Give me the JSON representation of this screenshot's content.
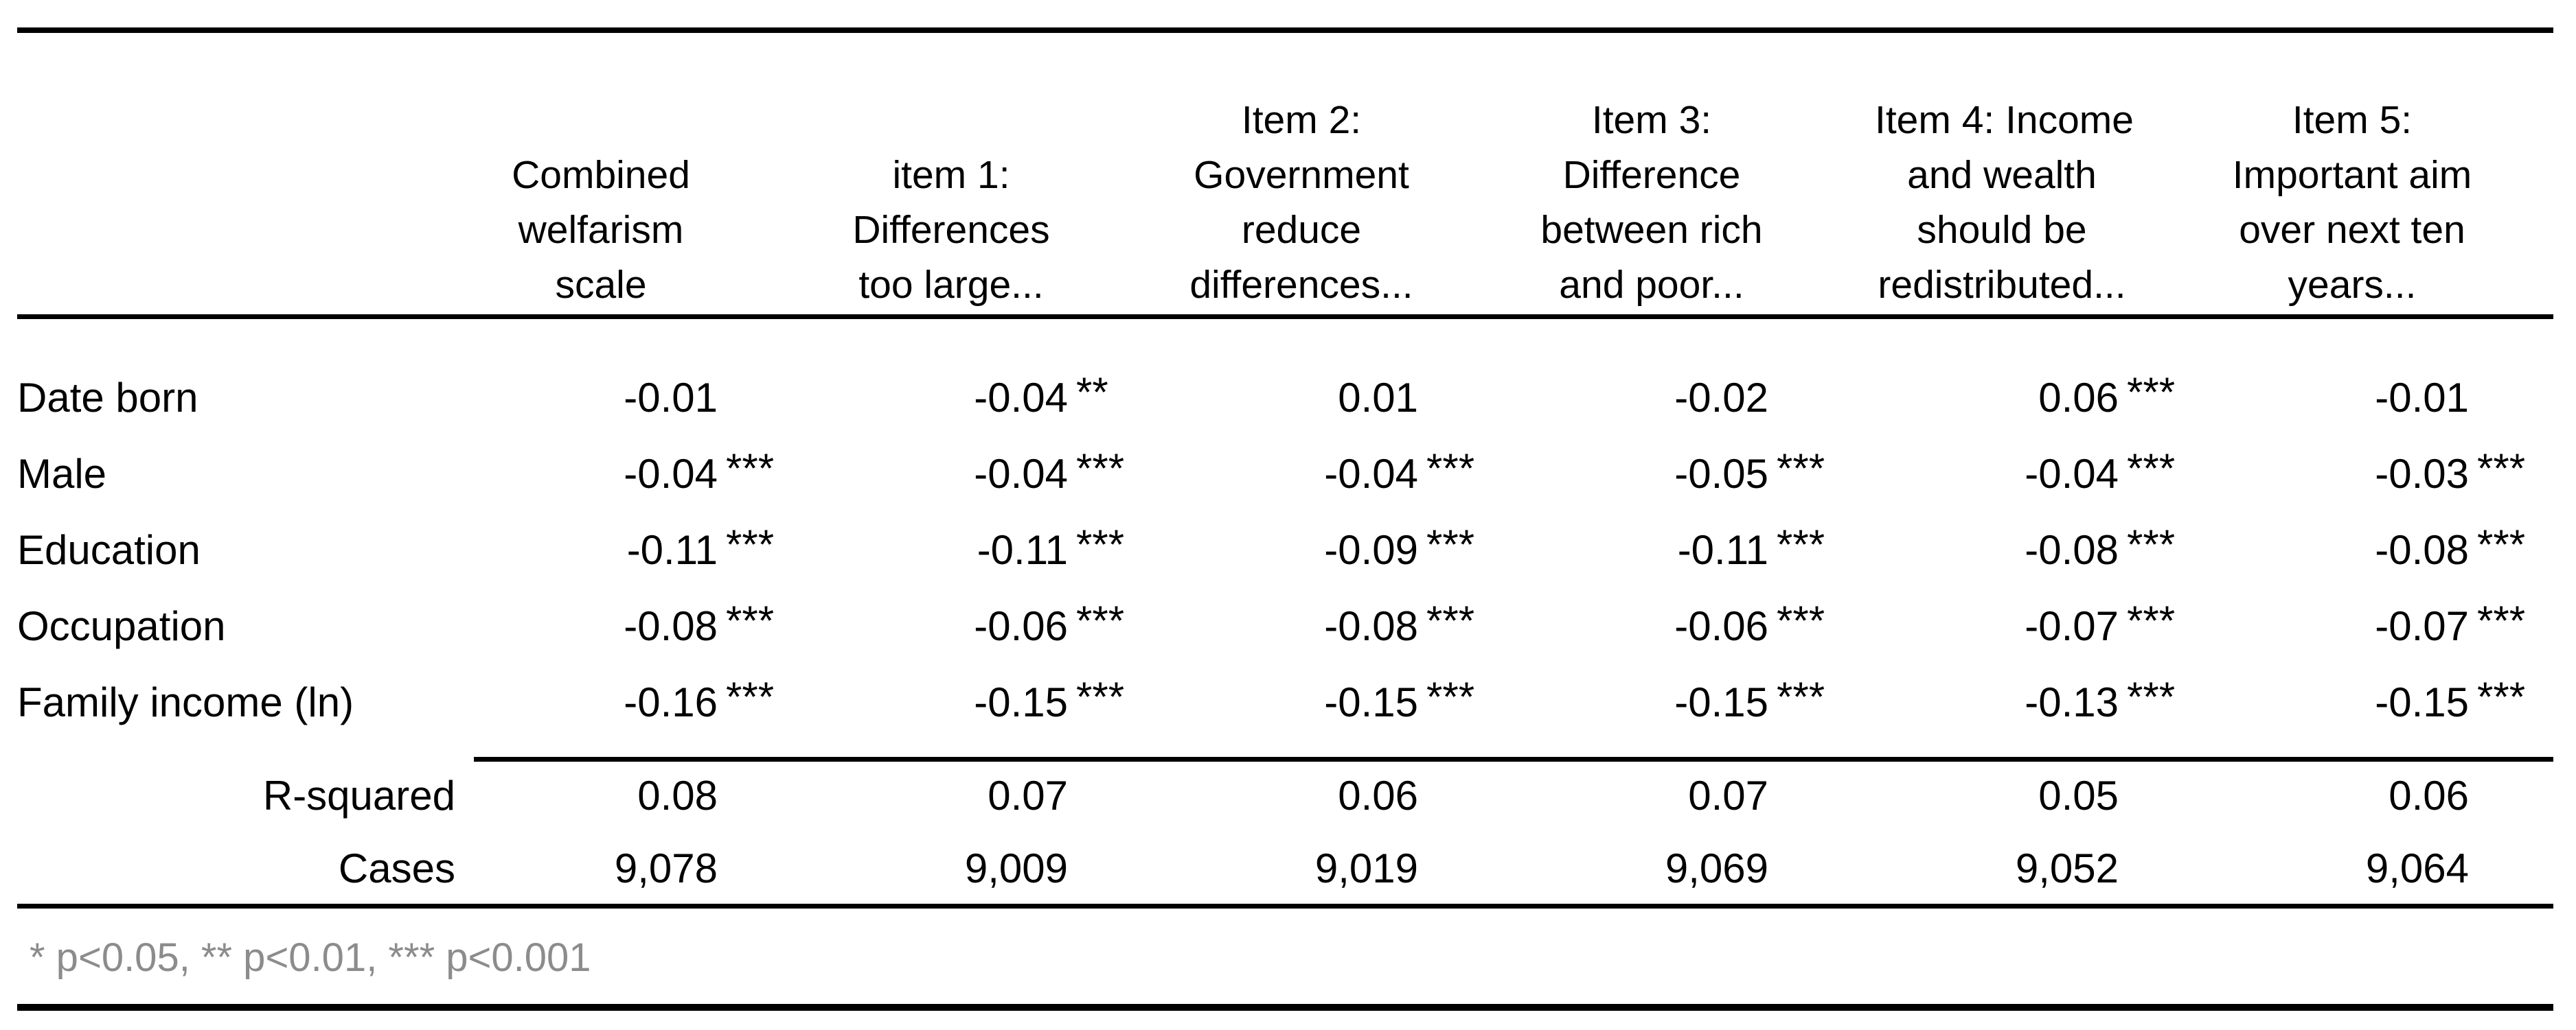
{
  "table": {
    "title_note": "",
    "columns": [
      {
        "id": "combined",
        "lines": [
          "Combined",
          "welfarism",
          "scale"
        ]
      },
      {
        "id": "item1",
        "lines": [
          "item 1:",
          "Differences",
          "too large..."
        ]
      },
      {
        "id": "item2",
        "lines": [
          "Item 2:",
          "Government",
          "reduce",
          "differences..."
        ]
      },
      {
        "id": "item3",
        "lines": [
          "Item 3:",
          "Difference",
          "between rich",
          "and poor..."
        ]
      },
      {
        "id": "item4",
        "lines": [
          "Item 4: Income",
          "and wealth",
          "should be",
          "redistributed..."
        ]
      },
      {
        "id": "item5",
        "lines": [
          "Item 5:",
          "Important aim",
          "over next ten",
          "years..."
        ]
      }
    ],
    "rows": [
      {
        "label": "Date born",
        "shaded": false,
        "cells": [
          {
            "value": "-0.01",
            "stars": ""
          },
          {
            "value": "-0.04",
            "stars": "**"
          },
          {
            "value": "0.01",
            "stars": ""
          },
          {
            "value": "-0.02",
            "stars": ""
          },
          {
            "value": "0.06",
            "stars": "***"
          },
          {
            "value": "-0.01",
            "stars": ""
          }
        ]
      },
      {
        "label": "Male",
        "shaded": false,
        "cells": [
          {
            "value": "-0.04",
            "stars": "***"
          },
          {
            "value": "-0.04",
            "stars": "***"
          },
          {
            "value": "-0.04",
            "stars": "***"
          },
          {
            "value": "-0.05",
            "stars": "***"
          },
          {
            "value": "-0.04",
            "stars": "***"
          },
          {
            "value": "-0.03",
            "stars": "***"
          }
        ]
      },
      {
        "label": "Education",
        "shaded": false,
        "cells": [
          {
            "value": "-0.11",
            "stars": "***"
          },
          {
            "value": "-0.11",
            "stars": "***"
          },
          {
            "value": "-0.09",
            "stars": "***"
          },
          {
            "value": "-0.11",
            "stars": "***"
          },
          {
            "value": "-0.08",
            "stars": "***"
          },
          {
            "value": "-0.08",
            "stars": "***"
          }
        ]
      },
      {
        "label": "Occupation",
        "shaded": false,
        "cells": [
          {
            "value": "-0.08",
            "stars": "***"
          },
          {
            "value": "-0.06",
            "stars": "***"
          },
          {
            "value": "-0.08",
            "stars": "***"
          },
          {
            "value": "-0.06",
            "stars": "***"
          },
          {
            "value": "-0.07",
            "stars": "***"
          },
          {
            "value": "-0.07",
            "stars": "***"
          }
        ]
      },
      {
        "label": "Family income (ln)",
        "shaded": true,
        "cells": [
          {
            "value": "-0.16",
            "stars": "***"
          },
          {
            "value": "-0.15",
            "stars": "***"
          },
          {
            "value": "-0.15",
            "stars": "***"
          },
          {
            "value": "-0.15",
            "stars": "***"
          },
          {
            "value": "-0.13",
            "stars": "***"
          },
          {
            "value": "-0.15",
            "stars": "***"
          }
        ]
      }
    ],
    "summary_rows": [
      {
        "label": "R-squared",
        "values": [
          "0.08",
          "0.07",
          "0.06",
          "0.07",
          "0.05",
          "0.06"
        ]
      },
      {
        "label": "Cases",
        "values": [
          "9,078",
          "9,009",
          "9,019",
          "9,069",
          "9,052",
          "9,064"
        ]
      }
    ],
    "footnote": "* p<0.05, ** p<0.01, *** p<0.001",
    "colors": {
      "rule": "#000000",
      "shaded_row": "#efefef",
      "footnote_text": "#8c8c8c",
      "text": "#000000",
      "background": "#ffffff"
    }
  }
}
